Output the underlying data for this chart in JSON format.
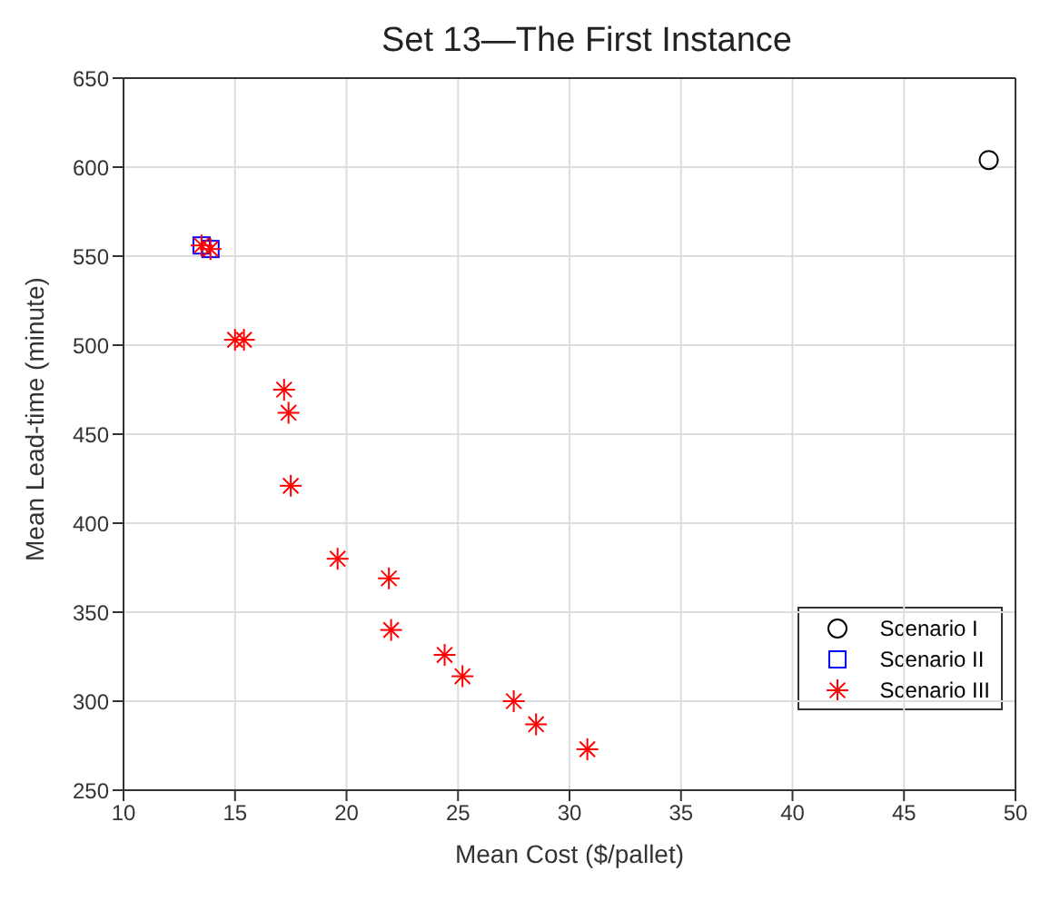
{
  "chart_data": {
    "type": "scatter",
    "title": "Set 13—The First Instance",
    "xlabel": "Mean Cost ($/pallet)",
    "ylabel": "Mean Lead-time (minute)",
    "xlim": [
      10,
      50
    ],
    "xticks": [
      10,
      15,
      20,
      25,
      30,
      35,
      40,
      45,
      50
    ],
    "ylim": [
      250,
      650
    ],
    "yticks": [
      250,
      300,
      350,
      400,
      450,
      500,
      550,
      600,
      650
    ],
    "grid": true,
    "legend": "bottom right",
    "series": [
      {
        "name": "Scenario I",
        "color": "#000000",
        "marker": "circle",
        "x": [
          48.8
        ],
        "values": [
          604
        ]
      },
      {
        "name": "Scenario II",
        "color": "#0000ff",
        "marker": "square",
        "x": [
          13.5,
          13.9
        ],
        "values": [
          556,
          554
        ]
      },
      {
        "name": "Scenario III",
        "color": "#ff0000",
        "marker": "cross",
        "x": [
          13.5,
          13.9,
          15.0,
          15.4,
          17.2,
          17.4,
          17.5,
          19.6,
          21.9,
          22.0,
          24.4,
          25.2,
          27.5,
          28.5,
          30.8
        ],
        "values": [
          556,
          554,
          503,
          503,
          475,
          462,
          421,
          380,
          369,
          340,
          326,
          314,
          300,
          287,
          273
        ]
      }
    ]
  }
}
